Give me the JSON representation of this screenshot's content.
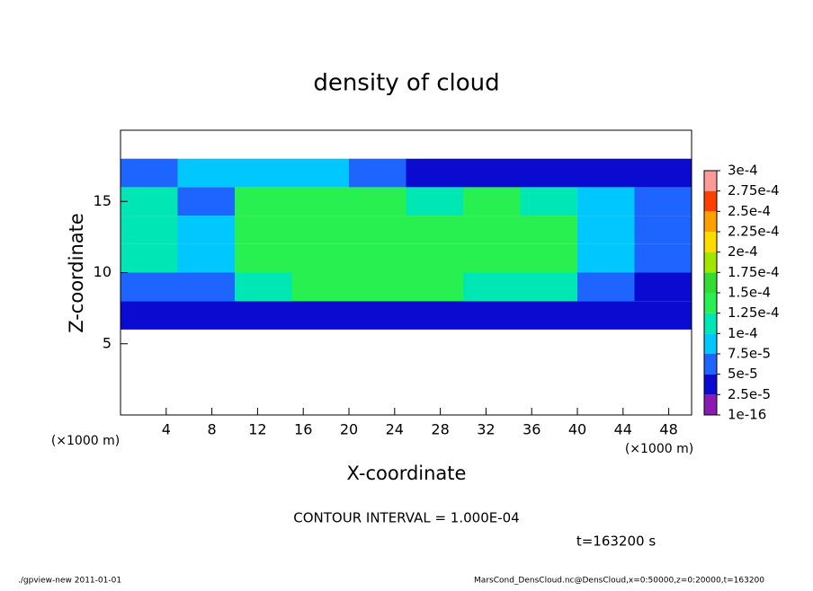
{
  "chart_data": {
    "type": "heatmap",
    "title": "density of cloud",
    "xlabel": "X-coordinate",
    "ylabel": "Z-coordinate",
    "x_unit": "(×1000 m)",
    "y_unit": "(×1000 m)",
    "contour_note": "CONTOUR INTERVAL = 1.000E-04",
    "time_label": "t=163200 s",
    "footer_left": "./gpview-new  2011-01-01",
    "footer_right": "MarsCond_DensCloud.nc@DensCloud,x=0:50000,z=0:20000,t=163200",
    "xlim": [
      0,
      50
    ],
    "ylim": [
      0,
      20
    ],
    "xticks": [
      4,
      8,
      12,
      16,
      20,
      24,
      28,
      32,
      36,
      40,
      44,
      48
    ],
    "yticks": [
      5,
      10,
      15
    ],
    "x": [
      2.5,
      7.5,
      12.5,
      17.5,
      22.5,
      27.5,
      32.5,
      37.5,
      42.5,
      47.5
    ],
    "y": [
      7,
      9,
      11,
      13,
      15,
      17
    ],
    "cell_width": 5,
    "cell_height": 2,
    "z": [
      [
        3e-05,
        3e-05,
        4e-05,
        4e-05,
        4e-05,
        4e-05,
        4e-05,
        4e-05,
        3e-05,
        3e-05
      ],
      [
        7e-05,
        5e-05,
        0.00012,
        0.000125,
        0.000125,
        0.000125,
        0.00012,
        0.00012,
        6e-05,
        4e-05
      ],
      [
        0.00012,
        8e-05,
        0.00013,
        0.00014,
        0.00014,
        0.00013,
        0.00013,
        0.00013,
        8e-05,
        6e-05
      ],
      [
        0.00012,
        9e-05,
        0.00014,
        0.00014,
        0.00014,
        0.00014,
        0.00014,
        0.00013,
        9e-05,
        5e-05
      ],
      [
        0.00011,
        6e-05,
        0.00013,
        0.00013,
        0.00013,
        0.00012,
        0.00013,
        0.00012,
        8e-05,
        6e-05
      ],
      [
        5e-05,
        8e-05,
        9e-05,
        8e-05,
        6e-05,
        4e-05,
        4e-05,
        4e-05,
        3e-05,
        3e-05
      ]
    ],
    "colorbar": {
      "ticks": [
        {
          "value": 1e-16,
          "label": "1e-16"
        },
        {
          "value": 2.5e-05,
          "label": "2.5e-5"
        },
        {
          "value": 5e-05,
          "label": "5e-5"
        },
        {
          "value": 7.5e-05,
          "label": "7.5e-5"
        },
        {
          "value": 0.0001,
          "label": "1e-4"
        },
        {
          "value": 0.000125,
          "label": "1.25e-4"
        },
        {
          "value": 0.00015,
          "label": "1.5e-4"
        },
        {
          "value": 0.000175,
          "label": "1.75e-4"
        },
        {
          "value": 0.0002,
          "label": "2e-4"
        },
        {
          "value": 0.000225,
          "label": "2.25e-4"
        },
        {
          "value": 0.00025,
          "label": "2.5e-4"
        },
        {
          "value": 0.000275,
          "label": "2.75e-4"
        },
        {
          "value": 0.0003,
          "label": "3e-4"
        }
      ],
      "colors": [
        "#8a1ab4",
        "#0a0ad0",
        "#1e64ff",
        "#00c8ff",
        "#00e6b4",
        "#28f050",
        "#32dc32",
        "#a0e600",
        "#ffdc00",
        "#ffa000",
        "#ff4000",
        "#ff9a9a"
      ]
    }
  }
}
